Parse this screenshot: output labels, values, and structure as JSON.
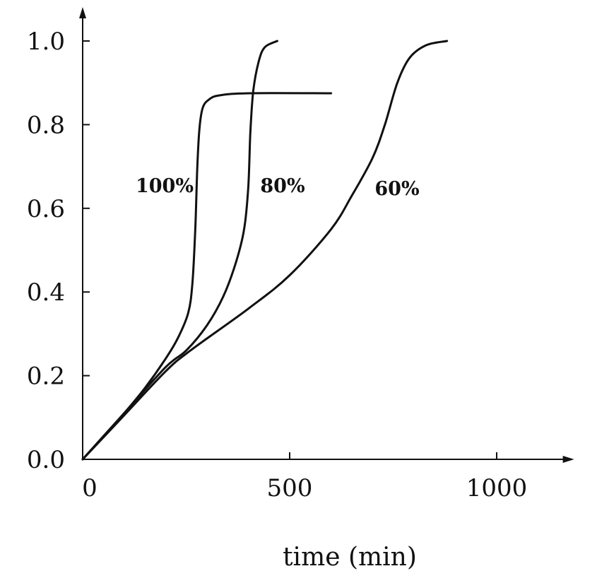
{
  "chart_data": {
    "type": "line",
    "title": "",
    "xlabel": "time (min)",
    "ylabel": "",
    "xlim": [
      0,
      1170
    ],
    "ylim": [
      0,
      1.03
    ],
    "x_ticks": [
      0,
      500,
      1000
    ],
    "x_tick_labels": [
      "0",
      "500",
      "1000"
    ],
    "y_ticks": [
      0.0,
      0.2,
      0.4,
      0.6,
      0.8,
      1.0
    ],
    "y_tick_labels": [
      "0.0",
      "0.2",
      "0.4",
      "0.6",
      "0.8",
      "1.0"
    ],
    "grid": false,
    "legend": "none",
    "series": [
      {
        "name": "100%",
        "points": [
          [
            0,
            0
          ],
          [
            50,
            0.055
          ],
          [
            100,
            0.11
          ],
          [
            150,
            0.17
          ],
          [
            200,
            0.24
          ],
          [
            230,
            0.29
          ],
          [
            255,
            0.35
          ],
          [
            265,
            0.42
          ],
          [
            272,
            0.55
          ],
          [
            277,
            0.7
          ],
          [
            282,
            0.79
          ],
          [
            290,
            0.84
          ],
          [
            305,
            0.86
          ],
          [
            330,
            0.87
          ],
          [
            400,
            0.875
          ],
          [
            600,
            0.875
          ]
        ]
      },
      {
        "name": "80%",
        "points": [
          [
            0,
            0
          ],
          [
            100,
            0.11
          ],
          [
            200,
            0.22
          ],
          [
            250,
            0.26
          ],
          [
            300,
            0.32
          ],
          [
            340,
            0.39
          ],
          [
            370,
            0.47
          ],
          [
            390,
            0.55
          ],
          [
            400,
            0.65
          ],
          [
            405,
            0.78
          ],
          [
            412,
            0.88
          ],
          [
            425,
            0.95
          ],
          [
            440,
            0.985
          ],
          [
            470,
            1.0
          ]
        ]
      },
      {
        "name": "60%",
        "points": [
          [
            0,
            0
          ],
          [
            100,
            0.105
          ],
          [
            200,
            0.21
          ],
          [
            260,
            0.26
          ],
          [
            400,
            0.36
          ],
          [
            500,
            0.44
          ],
          [
            600,
            0.55
          ],
          [
            650,
            0.63
          ],
          [
            700,
            0.72
          ],
          [
            730,
            0.8
          ],
          [
            760,
            0.9
          ],
          [
            790,
            0.96
          ],
          [
            830,
            0.99
          ],
          [
            880,
            1.0
          ]
        ]
      }
    ]
  }
}
